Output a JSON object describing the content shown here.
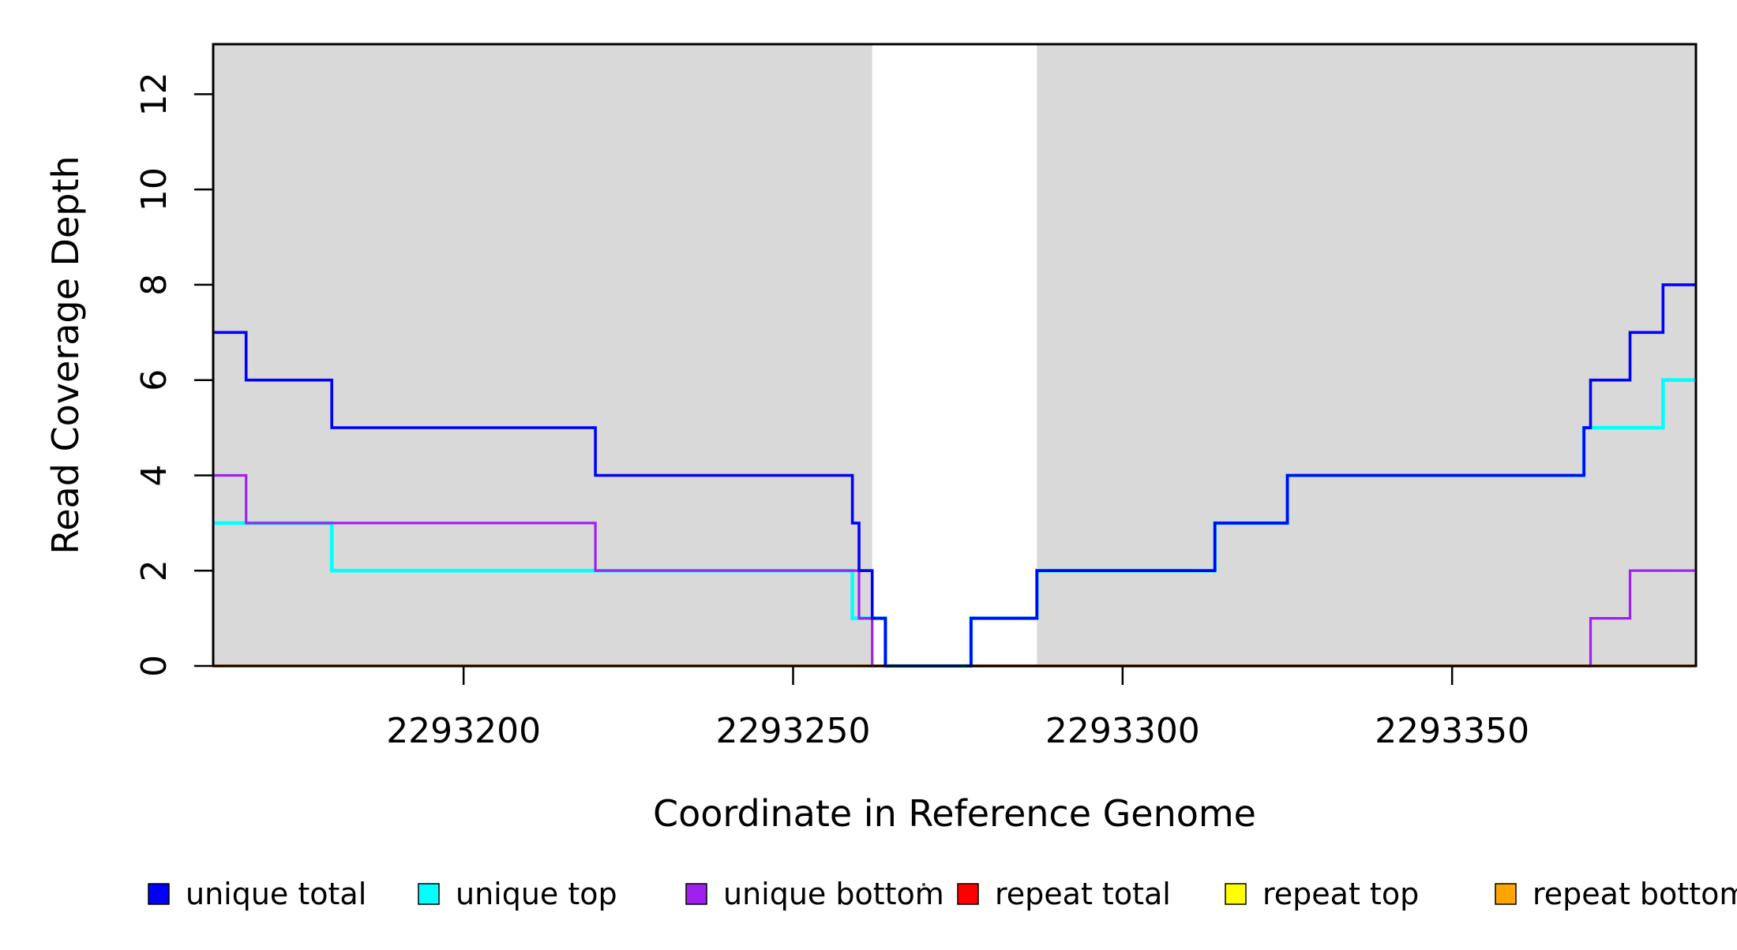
{
  "chart_data": {
    "type": "line",
    "subtype": "step",
    "title": "",
    "xlabel": "Coordinate in Reference Genome",
    "ylabel": "Read Coverage Depth",
    "x_range": [
      2293162,
      2293387
    ],
    "y_range": [
      0,
      13.05
    ],
    "x_ticks": [
      2293200,
      2293250,
      2293300,
      2293350
    ],
    "y_ticks": [
      0,
      2,
      4,
      6,
      8,
      10,
      12
    ],
    "grid": false,
    "legend_position": "bottom",
    "background_color": "#FFFFFF",
    "shade_color": "#D9D9D9",
    "axis_color": "#000000",
    "shaded_x_regions": [
      [
        2293162,
        2293262
      ],
      [
        2293287,
        2293387
      ]
    ],
    "draw_order": [
      "repeat total",
      "repeat top",
      "repeat bottom",
      "unique top",
      "unique bottom",
      "unique total"
    ],
    "series": [
      {
        "name": "unique total",
        "color": "#0000FF",
        "width": 3.6,
        "points": [
          [
            2293162,
            7
          ],
          [
            2293167,
            6
          ],
          [
            2293180,
            5
          ],
          [
            2293220,
            4
          ],
          [
            2293259,
            3
          ],
          [
            2293260,
            2
          ],
          [
            2293262,
            1
          ],
          [
            2293264,
            0
          ],
          [
            2293277,
            1
          ],
          [
            2293287,
            2
          ],
          [
            2293314,
            3
          ],
          [
            2293325,
            4
          ],
          [
            2293370,
            5
          ],
          [
            2293371,
            6
          ],
          [
            2293377,
            7
          ],
          [
            2293382,
            8
          ],
          [
            2293387,
            8
          ]
        ]
      },
      {
        "name": "unique top",
        "color": "#00FFFF",
        "width": 4.6,
        "points": [
          [
            2293162,
            3
          ],
          [
            2293180,
            2
          ],
          [
            2293259,
            1
          ],
          [
            2293264,
            0
          ],
          [
            2293277,
            1
          ],
          [
            2293287,
            2
          ],
          [
            2293314,
            3
          ],
          [
            2293325,
            4
          ],
          [
            2293370,
            5
          ],
          [
            2293382,
            6
          ],
          [
            2293387,
            6
          ]
        ]
      },
      {
        "name": "unique bottom",
        "color": "#A020F0",
        "width": 3.2,
        "points": [
          [
            2293162,
            4
          ],
          [
            2293167,
            3
          ],
          [
            2293220,
            2
          ],
          [
            2293260,
            1
          ],
          [
            2293262,
            0
          ],
          [
            2293371,
            1
          ],
          [
            2293377,
            2
          ],
          [
            2293387,
            2
          ]
        ]
      },
      {
        "name": "repeat total",
        "color": "#FF0000",
        "width": 3.4,
        "points": [
          [
            2293162,
            0
          ],
          [
            2293387,
            0
          ]
        ]
      },
      {
        "name": "repeat top",
        "color": "#FFFF00",
        "width": 3.4,
        "points": [
          [
            2293162,
            0
          ],
          [
            2293387,
            0
          ]
        ]
      },
      {
        "name": "repeat bottom",
        "color": "#FFA500",
        "width": 3.4,
        "points": [
          [
            2293162,
            0
          ],
          [
            2293387,
            0
          ]
        ]
      }
    ],
    "legend": {
      "labels": [
        "unique total",
        "unique top",
        "unique bottom",
        "repeat total",
        "repeat top",
        "repeat bottom"
      ],
      "colors": [
        "#0000FF",
        "#00FFFF",
        "#A020F0",
        "#FF0000",
        "#FFFF00",
        "#FFA500"
      ]
    }
  }
}
